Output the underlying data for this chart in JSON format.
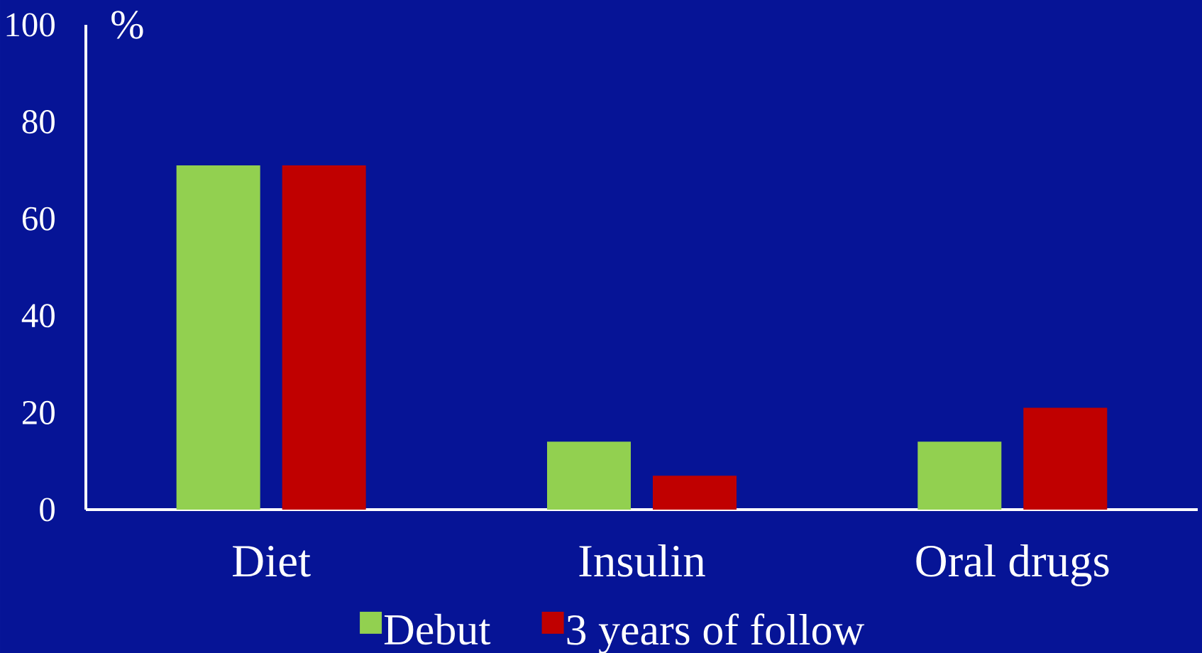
{
  "chart_data": {
    "type": "bar",
    "ylabel": "%",
    "categories": [
      "Diet",
      "Insulin",
      "Oral drugs"
    ],
    "series": [
      {
        "name": "Debut",
        "color": "#92d050",
        "values": [
          71,
          14,
          14
        ]
      },
      {
        "name": "3 years of follow",
        "color": "#c00000",
        "values": [
          71,
          7,
          21
        ]
      }
    ],
    "ylim": [
      0,
      100
    ],
    "yticks": [
      0,
      20,
      40,
      60,
      80,
      100
    ],
    "legend": "bottom"
  }
}
